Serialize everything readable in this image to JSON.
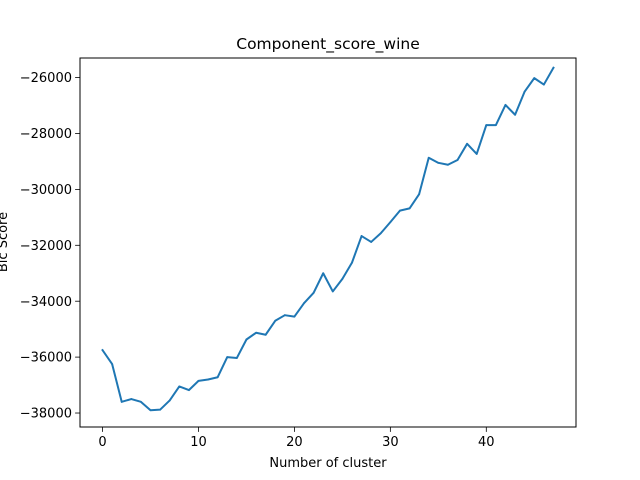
{
  "chart_data": {
    "type": "line",
    "title": "Component_score_wine",
    "xlabel": "Number of cluster",
    "ylabel": "Bic Score",
    "xlim": [
      -2.35,
      49.35
    ],
    "ylim": [
      -38500,
      -25300
    ],
    "x_ticks": [
      0,
      10,
      20,
      30,
      40
    ],
    "x_tick_labels": [
      "0",
      "10",
      "20",
      "30",
      "40"
    ],
    "y_ticks": [
      -38000,
      -36000,
      -34000,
      -32000,
      -30000,
      -28000,
      -26000
    ],
    "y_tick_labels": [
      "−38000",
      "−36000",
      "−34000",
      "−32000",
      "−30000",
      "−28000",
      "−26000"
    ],
    "grid": false,
    "series_color": "#1f77b4",
    "series": [
      {
        "x": [
          0,
          1,
          2,
          3,
          4,
          5,
          6,
          7,
          8,
          9,
          10,
          11,
          12,
          13,
          14,
          15,
          16,
          17,
          18,
          19,
          20,
          21,
          22,
          23,
          24,
          25,
          26,
          27,
          28,
          29,
          30,
          31,
          32,
          33,
          34,
          35,
          36,
          37,
          38,
          39,
          40,
          41,
          42,
          43,
          44,
          45,
          46,
          47
        ],
        "values": [
          -35750,
          -36250,
          -37600,
          -37500,
          -37600,
          -37900,
          -37880,
          -37550,
          -37050,
          -37180,
          -36850,
          -36800,
          -36720,
          -36000,
          -36030,
          -35370,
          -35130,
          -35200,
          -34700,
          -34500,
          -34550,
          -34070,
          -33700,
          -33000,
          -33650,
          -33200,
          -32620,
          -31670,
          -31880,
          -31570,
          -31170,
          -30760,
          -30680,
          -30170,
          -28870,
          -29050,
          -29120,
          -28950,
          -28370,
          -28730,
          -27700,
          -27700,
          -26980,
          -27330,
          -26500,
          -26020,
          -26250,
          -25650
        ]
      }
    ]
  }
}
